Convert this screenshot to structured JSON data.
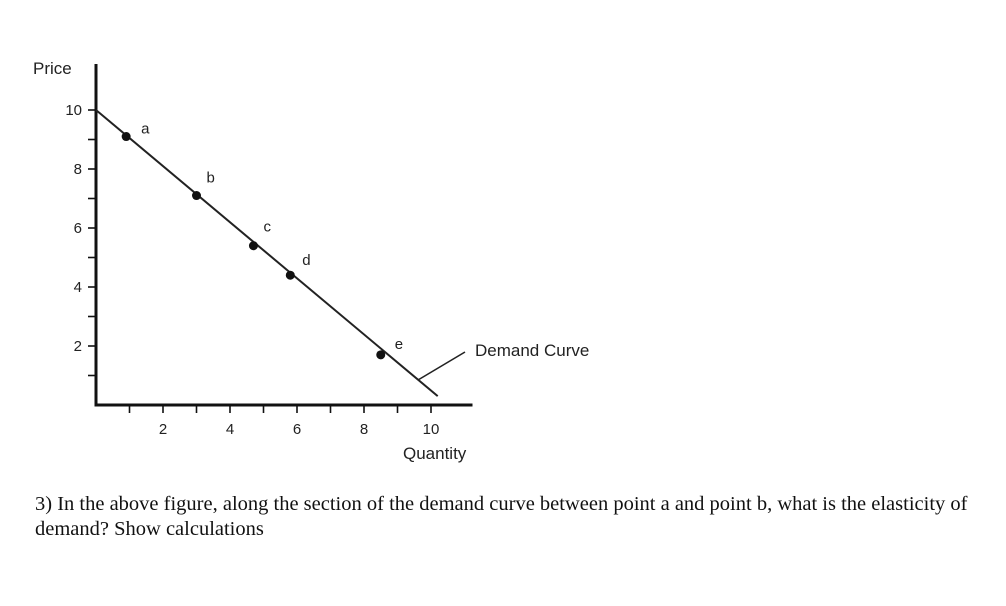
{
  "question": {
    "text": "3) In the above figure, along the section of the demand curve between point a and point b, what is the elasticity of demand? Show calculations"
  },
  "chart_data": {
    "type": "line",
    "ylabel": "Price",
    "xlabel": "Quantity",
    "xlim": [
      0,
      11
    ],
    "ylim": [
      0,
      11
    ],
    "x_ticks_labeled": [
      2,
      4,
      6,
      8,
      10
    ],
    "y_ticks_labeled": [
      2,
      4,
      6,
      8,
      10
    ],
    "minor_tick_step": 1,
    "curve_label": "Demand Curve",
    "curve": {
      "x": [
        0,
        10.2
      ],
      "y": [
        10,
        0.3
      ]
    },
    "points": [
      {
        "label": "a",
        "x": 0.9,
        "y": 9.1
      },
      {
        "label": "b",
        "x": 3.0,
        "y": 7.1
      },
      {
        "label": "c",
        "x": 4.7,
        "y": 5.4
      },
      {
        "label": "d",
        "x": 5.8,
        "y": 4.4
      },
      {
        "label": "e",
        "x": 8.5,
        "y": 1.7
      }
    ],
    "grid": false,
    "colors": {
      "ink": "#111111"
    }
  }
}
